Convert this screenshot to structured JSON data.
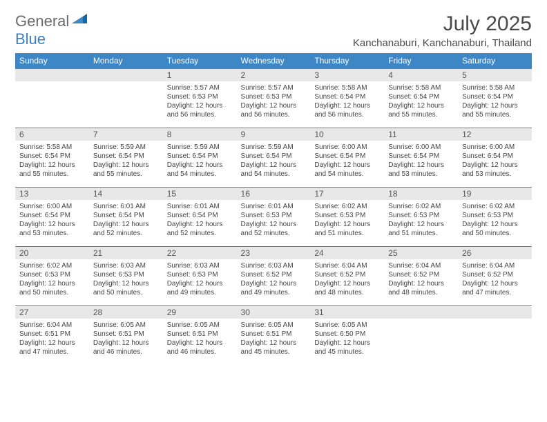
{
  "logo": {
    "text1": "General",
    "text2": "Blue"
  },
  "title": "July 2025",
  "location": "Kanchanaburi, Kanchanaburi, Thailand",
  "header_bg": "#3d87c7",
  "daynum_bg": "#e8e8e8",
  "days": [
    "Sunday",
    "Monday",
    "Tuesday",
    "Wednesday",
    "Thursday",
    "Friday",
    "Saturday"
  ],
  "weeks": [
    [
      {
        "n": "",
        "empty": true
      },
      {
        "n": "",
        "empty": true
      },
      {
        "n": "1",
        "sr": "Sunrise: 5:57 AM",
        "ss": "Sunset: 6:53 PM",
        "dl": "Daylight: 12 hours and 56 minutes."
      },
      {
        "n": "2",
        "sr": "Sunrise: 5:57 AM",
        "ss": "Sunset: 6:53 PM",
        "dl": "Daylight: 12 hours and 56 minutes."
      },
      {
        "n": "3",
        "sr": "Sunrise: 5:58 AM",
        "ss": "Sunset: 6:54 PM",
        "dl": "Daylight: 12 hours and 56 minutes."
      },
      {
        "n": "4",
        "sr": "Sunrise: 5:58 AM",
        "ss": "Sunset: 6:54 PM",
        "dl": "Daylight: 12 hours and 55 minutes."
      },
      {
        "n": "5",
        "sr": "Sunrise: 5:58 AM",
        "ss": "Sunset: 6:54 PM",
        "dl": "Daylight: 12 hours and 55 minutes."
      }
    ],
    [
      {
        "n": "6",
        "sr": "Sunrise: 5:58 AM",
        "ss": "Sunset: 6:54 PM",
        "dl": "Daylight: 12 hours and 55 minutes."
      },
      {
        "n": "7",
        "sr": "Sunrise: 5:59 AM",
        "ss": "Sunset: 6:54 PM",
        "dl": "Daylight: 12 hours and 55 minutes."
      },
      {
        "n": "8",
        "sr": "Sunrise: 5:59 AM",
        "ss": "Sunset: 6:54 PM",
        "dl": "Daylight: 12 hours and 54 minutes."
      },
      {
        "n": "9",
        "sr": "Sunrise: 5:59 AM",
        "ss": "Sunset: 6:54 PM",
        "dl": "Daylight: 12 hours and 54 minutes."
      },
      {
        "n": "10",
        "sr": "Sunrise: 6:00 AM",
        "ss": "Sunset: 6:54 PM",
        "dl": "Daylight: 12 hours and 54 minutes."
      },
      {
        "n": "11",
        "sr": "Sunrise: 6:00 AM",
        "ss": "Sunset: 6:54 PM",
        "dl": "Daylight: 12 hours and 53 minutes."
      },
      {
        "n": "12",
        "sr": "Sunrise: 6:00 AM",
        "ss": "Sunset: 6:54 PM",
        "dl": "Daylight: 12 hours and 53 minutes."
      }
    ],
    [
      {
        "n": "13",
        "sr": "Sunrise: 6:00 AM",
        "ss": "Sunset: 6:54 PM",
        "dl": "Daylight: 12 hours and 53 minutes."
      },
      {
        "n": "14",
        "sr": "Sunrise: 6:01 AM",
        "ss": "Sunset: 6:54 PM",
        "dl": "Daylight: 12 hours and 52 minutes."
      },
      {
        "n": "15",
        "sr": "Sunrise: 6:01 AM",
        "ss": "Sunset: 6:54 PM",
        "dl": "Daylight: 12 hours and 52 minutes."
      },
      {
        "n": "16",
        "sr": "Sunrise: 6:01 AM",
        "ss": "Sunset: 6:53 PM",
        "dl": "Daylight: 12 hours and 52 minutes."
      },
      {
        "n": "17",
        "sr": "Sunrise: 6:02 AM",
        "ss": "Sunset: 6:53 PM",
        "dl": "Daylight: 12 hours and 51 minutes."
      },
      {
        "n": "18",
        "sr": "Sunrise: 6:02 AM",
        "ss": "Sunset: 6:53 PM",
        "dl": "Daylight: 12 hours and 51 minutes."
      },
      {
        "n": "19",
        "sr": "Sunrise: 6:02 AM",
        "ss": "Sunset: 6:53 PM",
        "dl": "Daylight: 12 hours and 50 minutes."
      }
    ],
    [
      {
        "n": "20",
        "sr": "Sunrise: 6:02 AM",
        "ss": "Sunset: 6:53 PM",
        "dl": "Daylight: 12 hours and 50 minutes."
      },
      {
        "n": "21",
        "sr": "Sunrise: 6:03 AM",
        "ss": "Sunset: 6:53 PM",
        "dl": "Daylight: 12 hours and 50 minutes."
      },
      {
        "n": "22",
        "sr": "Sunrise: 6:03 AM",
        "ss": "Sunset: 6:53 PM",
        "dl": "Daylight: 12 hours and 49 minutes."
      },
      {
        "n": "23",
        "sr": "Sunrise: 6:03 AM",
        "ss": "Sunset: 6:52 PM",
        "dl": "Daylight: 12 hours and 49 minutes."
      },
      {
        "n": "24",
        "sr": "Sunrise: 6:04 AM",
        "ss": "Sunset: 6:52 PM",
        "dl": "Daylight: 12 hours and 48 minutes."
      },
      {
        "n": "25",
        "sr": "Sunrise: 6:04 AM",
        "ss": "Sunset: 6:52 PM",
        "dl": "Daylight: 12 hours and 48 minutes."
      },
      {
        "n": "26",
        "sr": "Sunrise: 6:04 AM",
        "ss": "Sunset: 6:52 PM",
        "dl": "Daylight: 12 hours and 47 minutes."
      }
    ],
    [
      {
        "n": "27",
        "sr": "Sunrise: 6:04 AM",
        "ss": "Sunset: 6:51 PM",
        "dl": "Daylight: 12 hours and 47 minutes."
      },
      {
        "n": "28",
        "sr": "Sunrise: 6:05 AM",
        "ss": "Sunset: 6:51 PM",
        "dl": "Daylight: 12 hours and 46 minutes."
      },
      {
        "n": "29",
        "sr": "Sunrise: 6:05 AM",
        "ss": "Sunset: 6:51 PM",
        "dl": "Daylight: 12 hours and 46 minutes."
      },
      {
        "n": "30",
        "sr": "Sunrise: 6:05 AM",
        "ss": "Sunset: 6:51 PM",
        "dl": "Daylight: 12 hours and 45 minutes."
      },
      {
        "n": "31",
        "sr": "Sunrise: 6:05 AM",
        "ss": "Sunset: 6:50 PM",
        "dl": "Daylight: 12 hours and 45 minutes."
      },
      {
        "n": "",
        "empty": true
      },
      {
        "n": "",
        "empty": true
      }
    ]
  ]
}
